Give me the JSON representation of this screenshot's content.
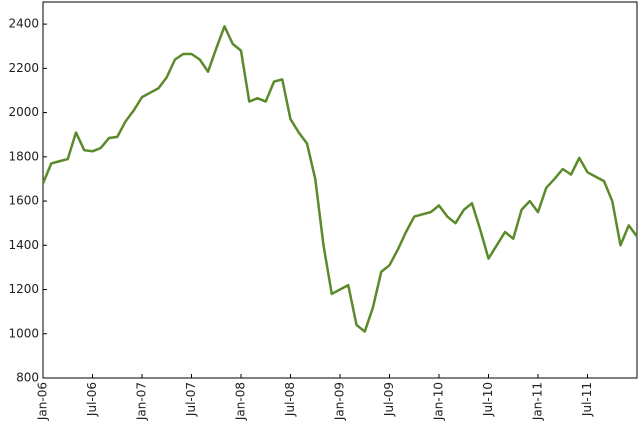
{
  "chart_data": {
    "type": "line",
    "x": [
      "2006-01",
      "2006-02",
      "2006-03",
      "2006-04",
      "2006-05",
      "2006-06",
      "2006-07",
      "2006-08",
      "2006-09",
      "2006-10",
      "2006-11",
      "2006-12",
      "2007-01",
      "2007-02",
      "2007-03",
      "2007-04",
      "2007-05",
      "2007-06",
      "2007-07",
      "2007-08",
      "2007-09",
      "2007-10",
      "2007-11",
      "2007-12",
      "2008-01",
      "2008-02",
      "2008-03",
      "2008-04",
      "2008-05",
      "2008-06",
      "2008-07",
      "2008-08",
      "2008-09",
      "2008-10",
      "2008-11",
      "2008-12",
      "2009-01",
      "2009-02",
      "2009-03",
      "2009-04",
      "2009-05",
      "2009-06",
      "2009-07",
      "2009-08",
      "2009-09",
      "2009-10",
      "2009-11",
      "2009-12",
      "2010-01",
      "2010-02",
      "2010-03",
      "2010-04",
      "2010-05",
      "2010-06",
      "2010-07",
      "2010-08",
      "2010-09",
      "2010-10",
      "2010-11",
      "2010-12",
      "2011-01",
      "2011-02",
      "2011-03",
      "2011-04",
      "2011-05",
      "2011-06",
      "2011-07",
      "2011-08",
      "2011-09",
      "2011-10",
      "2011-11",
      "2011-12",
      "2012-01"
    ],
    "series": [
      {
        "color": "#5b8a2b",
        "values": [
          1680,
          1770,
          1780,
          1790,
          1910,
          1830,
          1825,
          1840,
          1885,
          1890,
          1960,
          2010,
          2070,
          2090,
          2110,
          2160,
          2240,
          2265,
          2265,
          2240,
          2185,
          2290,
          2390,
          2310,
          2280,
          2050,
          2065,
          2050,
          2140,
          2150,
          1970,
          1910,
          1860,
          1700,
          1400,
          1180,
          1200,
          1220,
          1040,
          1010,
          1120,
          1280,
          1310,
          1380,
          1460,
          1530,
          1540,
          1550,
          1580,
          1530,
          1500,
          1560,
          1590,
          1470,
          1340,
          1400,
          1460,
          1430,
          1560,
          1600,
          1550,
          1660,
          1700,
          1745,
          1720,
          1795,
          1730,
          1710,
          1690,
          1600,
          1400,
          1490,
          1440
        ]
      }
    ],
    "xlim": [
      "2006-01",
      "2012-01"
    ],
    "xticks": [
      {
        "value": "2006-01",
        "label": "Jan-06"
      },
      {
        "value": "2006-07",
        "label": "Jul-06"
      },
      {
        "value": "2007-01",
        "label": "Jan-07"
      },
      {
        "value": "2007-07",
        "label": "Jul-07"
      },
      {
        "value": "2008-01",
        "label": "Jan-08"
      },
      {
        "value": "2008-07",
        "label": "Jul-08"
      },
      {
        "value": "2009-01",
        "label": "Jan-09"
      },
      {
        "value": "2009-07",
        "label": "Jul-09"
      },
      {
        "value": "2010-01",
        "label": "Jan-10"
      },
      {
        "value": "2010-07",
        "label": "Jul-10"
      },
      {
        "value": "2011-01",
        "label": "Jan-11"
      },
      {
        "value": "2011-07",
        "label": "Jul-11"
      }
    ],
    "ylim": [
      800,
      2500
    ],
    "yticks": [
      800,
      1000,
      1200,
      1400,
      1600,
      1800,
      2000,
      2200,
      2400
    ]
  }
}
